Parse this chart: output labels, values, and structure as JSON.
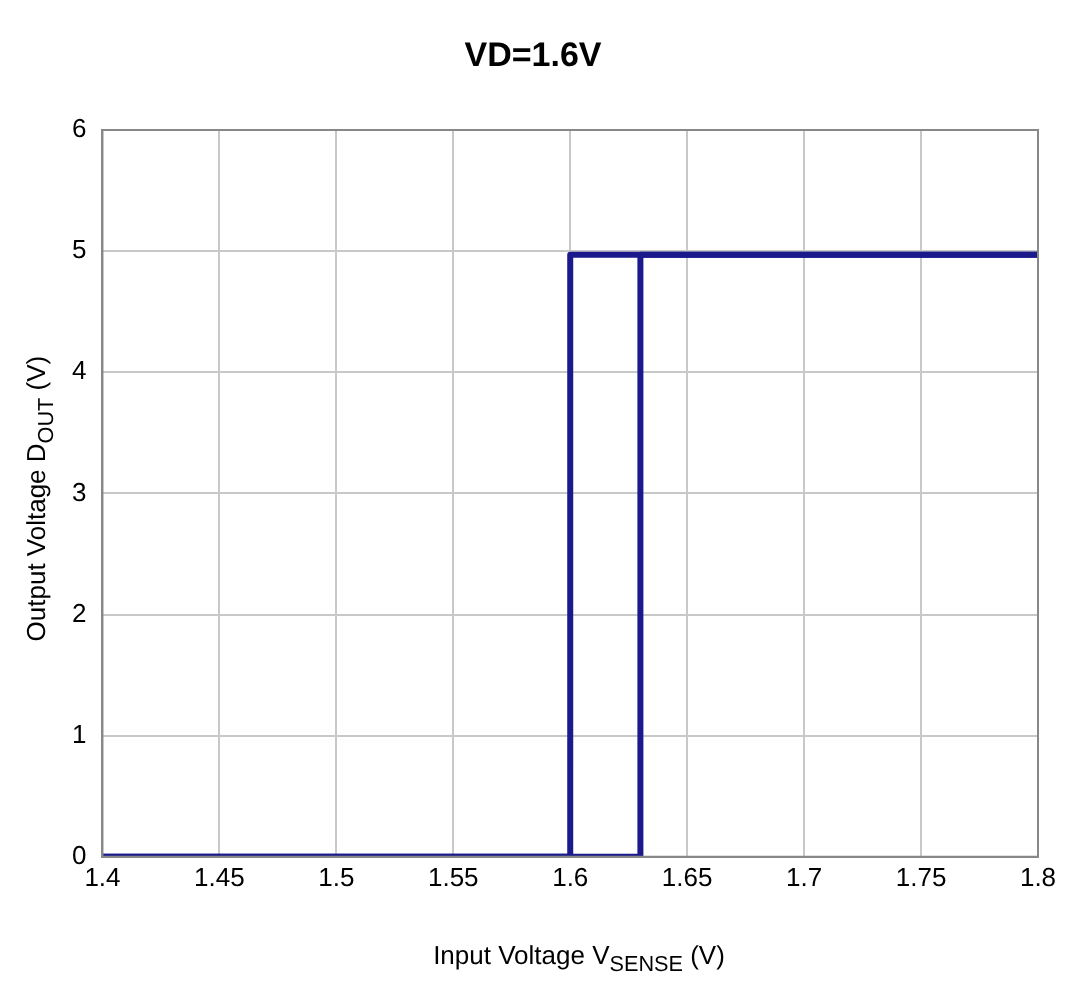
{
  "chart_data": {
    "type": "line",
    "title": "VD=1.6V",
    "xlabel": "Input Voltage V$_{SENSE}$ (V)",
    "ylabel": "Output Voltage D$_{OUT}$ (V)",
    "series": [
      {
        "color": "#1a1a8c",
        "x": [
          1.4,
          1.63,
          1.63,
          1.8
        ],
        "values": [
          0,
          0,
          4.97,
          4.97
        ]
      },
      {
        "color": "#1a1a8c",
        "x": [
          1.4,
          1.6,
          1.6,
          1.8
        ],
        "values": [
          0,
          0,
          4.97,
          4.97
        ]
      }
    ],
    "xlim": [
      1.4,
      1.8
    ],
    "xticks": [
      1.4,
      1.45,
      1.5,
      1.55,
      1.6,
      1.65,
      1.7,
      1.75,
      1.8
    ],
    "ylim": [
      0,
      6
    ],
    "yticks": [
      0,
      1,
      2,
      3,
      4,
      5,
      6
    ],
    "grid": true,
    "legend": false,
    "marker": "none",
    "line_style": "solid"
  }
}
